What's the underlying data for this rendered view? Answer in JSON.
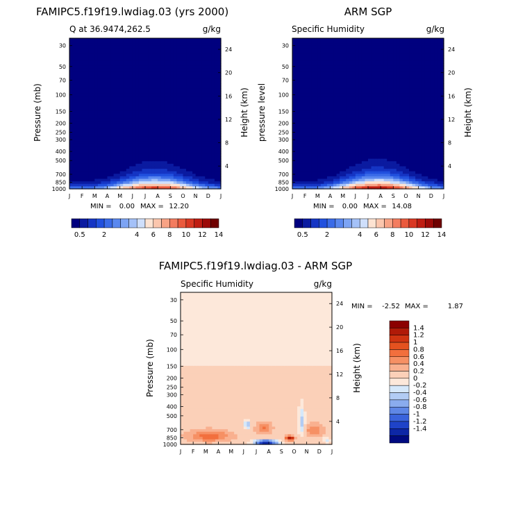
{
  "chart_data": [
    {
      "type": "heatmap",
      "title": "FAMIPC5.f19f19.lwdiag.03 (yrs 2000)",
      "subtitle_left": "Q at 36.9474,262.5",
      "subtitle_right": "g/kg",
      "ylabel": "Pressure (mb)",
      "y2label": "Height (km)",
      "x_ticks": [
        "J",
        "F",
        "M",
        "A",
        "M",
        "J",
        "J",
        "A",
        "S",
        "O",
        "N",
        "D",
        "J"
      ],
      "p_ticks": [
        30,
        50,
        70,
        100,
        150,
        200,
        250,
        300,
        400,
        500,
        700,
        850,
        1000
      ],
      "h_ticks": [
        4,
        8,
        12,
        16,
        20,
        24
      ],
      "ylim": [
        25,
        1000
      ],
      "min_label": "MIN =",
      "min_value": "0.00",
      "max_label": "MAX =",
      "max_value": "12.20",
      "levels": [
        0.5,
        1,
        1.5,
        2,
        2.5,
        3,
        3.5,
        4,
        5,
        6,
        7,
        8,
        9,
        10,
        11,
        12,
        13,
        14
      ],
      "colorbar_ticks": [
        "0.5",
        "2",
        "4",
        "6",
        "8",
        "10",
        "12",
        "14"
      ],
      "palette": [
        "#00007f",
        "#0a1aa0",
        "#1535c4",
        "#2150de",
        "#3a6be8",
        "#5a88ef",
        "#7da4f4",
        "#a4c1f8",
        "#cfdffb",
        "#fde3d2",
        "#fbc6ad",
        "#f8a385",
        "#f37c5f",
        "#ea5a3d",
        "#d93823",
        "#bf1d12",
        "#9c0a08",
        "#6f0000"
      ],
      "model": "obs",
      "surface_max": 12.2
    },
    {
      "type": "heatmap",
      "title": "ARM SGP",
      "subtitle_left": "Specific Humidity",
      "subtitle_right": "g/kg",
      "ylabel": "pressure level",
      "y2label": "Height (km)",
      "x_ticks": [
        "J",
        "F",
        "M",
        "A",
        "M",
        "J",
        "J",
        "A",
        "S",
        "O",
        "N",
        "D",
        "J"
      ],
      "p_ticks": [
        30,
        50,
        70,
        100,
        150,
        200,
        250,
        300,
        400,
        500,
        700,
        850,
        1000
      ],
      "h_ticks": [
        4,
        8,
        12,
        16,
        20,
        24
      ],
      "ylim": [
        25,
        1000
      ],
      "min_label": "MIN =",
      "min_value": "0.00",
      "max_label": "MAX =",
      "max_value": "14.08",
      "levels": [
        0.5,
        1,
        1.5,
        2,
        2.5,
        3,
        3.5,
        4,
        5,
        6,
        7,
        8,
        9,
        10,
        11,
        12,
        13,
        14
      ],
      "colorbar_ticks": [
        "0.5",
        "2",
        "4",
        "6",
        "8",
        "10",
        "12",
        "14"
      ],
      "surface_max": 14.08
    },
    {
      "type": "heatmap",
      "title": "FAMIPC5.f19f19.lwdiag.03 - ARM SGP",
      "subtitle_left": "Specific Humidity",
      "subtitle_right": "g/kg",
      "ylabel": "Pressure (mb)",
      "y2label": "Height (km)",
      "x_ticks": [
        "J",
        "F",
        "M",
        "A",
        "M",
        "J",
        "J",
        "A",
        "S",
        "O",
        "N",
        "D",
        "J"
      ],
      "p_ticks": [
        30,
        50,
        70,
        100,
        150,
        200,
        250,
        300,
        400,
        500,
        700,
        850,
        1000
      ],
      "h_ticks": [
        4,
        8,
        12,
        16,
        20,
        24
      ],
      "ylim": [
        25,
        1000
      ],
      "min_label": "MIN =",
      "min_value": "-2.52",
      "max_label": "MAX =",
      "max_value": "1.87",
      "colorbar_ticks": [
        "1.4",
        "1.2",
        "1",
        "0.8",
        "0.6",
        "0.4",
        "0.2",
        "0",
        "-0.2",
        "-0.4",
        "-0.6",
        "-0.8",
        "-1",
        "-1.2",
        "-1.4"
      ],
      "palette": [
        "#8b0000",
        "#b01a08",
        "#cf3411",
        "#e4521f",
        "#f26f3d",
        "#f69064",
        "#f9b08f",
        "#fbd0b8",
        "#fde8da",
        "#d6e8fa",
        "#b2ccf4",
        "#8aacee",
        "#5f87e6",
        "#3a63dc",
        "#1f43c8",
        "#0d27a6",
        "#000a80"
      ]
    }
  ]
}
